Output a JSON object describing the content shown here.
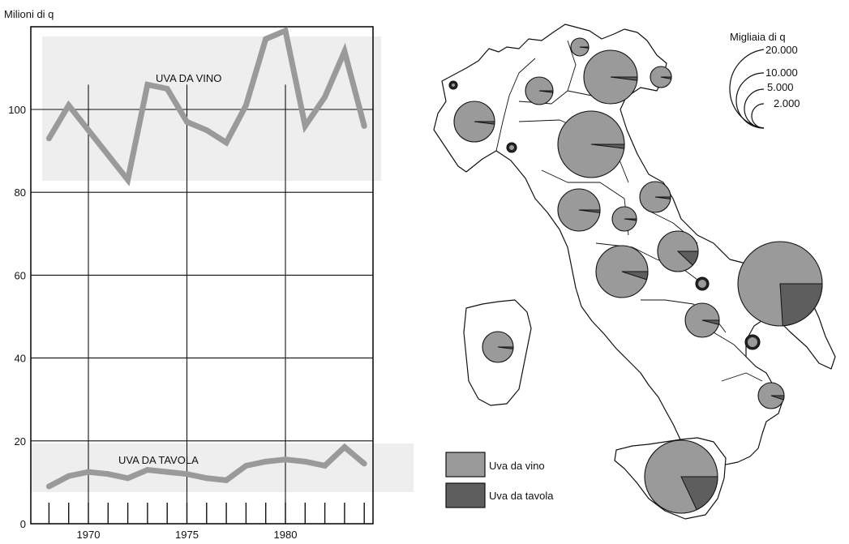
{
  "chart_data": [
    {
      "type": "line",
      "ylabel": "Milioni di q",
      "xlabel": "",
      "x_ticks": [
        "1970",
        "1975",
        "1980"
      ],
      "y_ticks": [
        "0",
        "20",
        "40",
        "60",
        "80",
        "100"
      ],
      "xlim": [
        1967.5,
        1985
      ],
      "ylim": [
        0,
        120
      ],
      "grid": true,
      "x": [
        1968,
        1969,
        1970,
        1971,
        1972,
        1973,
        1974,
        1975,
        1976,
        1977,
        1978,
        1979,
        1980,
        1981,
        1982,
        1983,
        1984
      ],
      "series": [
        {
          "name": "UVA DA VINO",
          "color": "#9a9a9a",
          "values": [
            93,
            101,
            95,
            89,
            83,
            106,
            105,
            97,
            95,
            92,
            101,
            117,
            119,
            96,
            103,
            114,
            96
          ]
        },
        {
          "name": "UVA DA TAVOLA",
          "color": "#9a9a9a",
          "values": [
            9,
            11.5,
            12.5,
            12,
            11,
            13,
            12.5,
            12,
            11,
            10.5,
            14,
            15,
            15.5,
            15,
            14,
            18.5,
            14.5
          ]
        }
      ]
    },
    {
      "type": "map",
      "size_legend": {
        "title": "Migliaia di q",
        "levels": [
          "20.000",
          "10.000",
          "5.000",
          "2.000"
        ]
      },
      "legend": [
        {
          "label": "Uva da vino",
          "color": "#9a9a9a"
        },
        {
          "label": "Uva da tavola",
          "color": "#5e5e5e"
        }
      ]
    }
  ],
  "colors": {
    "wine": "#9a9a9a",
    "table": "#5e5e5e",
    "grid": "#111111",
    "band": "#eeeeee"
  }
}
